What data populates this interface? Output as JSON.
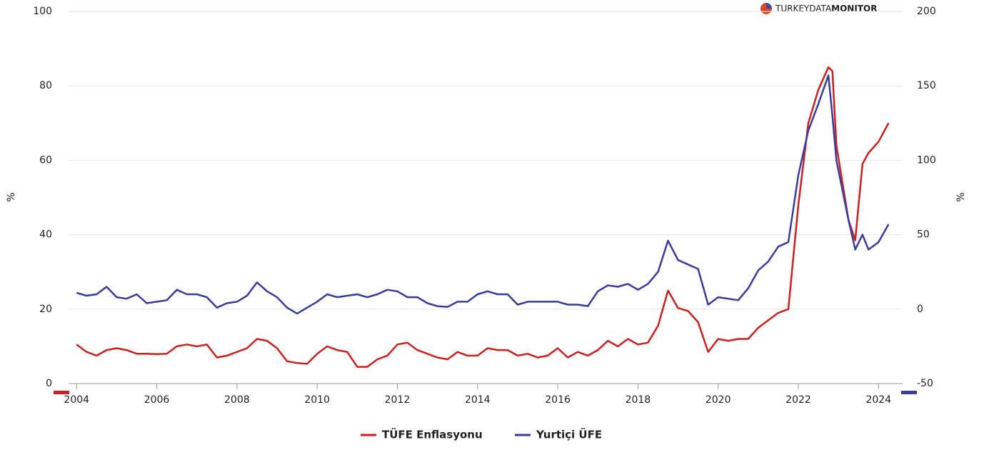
{
  "chart_data": {
    "type": "line",
    "logo": {
      "light": "TURKEYDATA",
      "bold": "MONITOR"
    },
    "ylabel": "%",
    "y2label": "%",
    "x": [
      2004.0,
      2004.25,
      2004.5,
      2004.75,
      2005.0,
      2005.25,
      2005.5,
      2005.75,
      2006.0,
      2006.25,
      2006.5,
      2006.75,
      2007.0,
      2007.25,
      2007.5,
      2007.75,
      2008.0,
      2008.25,
      2008.5,
      2008.75,
      2009.0,
      2009.25,
      2009.5,
      2009.75,
      2010.0,
      2010.25,
      2010.5,
      2010.75,
      2011.0,
      2011.25,
      2011.5,
      2011.75,
      2012.0,
      2012.25,
      2012.5,
      2012.75,
      2013.0,
      2013.25,
      2013.5,
      2013.75,
      2014.0,
      2014.25,
      2014.5,
      2014.75,
      2015.0,
      2015.25,
      2015.5,
      2015.75,
      2016.0,
      2016.25,
      2016.5,
      2016.75,
      2017.0,
      2017.25,
      2017.5,
      2017.75,
      2018.0,
      2018.25,
      2018.5,
      2018.75,
      2019.0,
      2019.25,
      2019.5,
      2019.75,
      2020.0,
      2020.25,
      2020.5,
      2020.75,
      2021.0,
      2021.25,
      2021.5,
      2021.75,
      2022.0,
      2022.25,
      2022.5,
      2022.75,
      2022.85,
      2022.95,
      2023.25,
      2023.42,
      2023.6,
      2023.75,
      2024.0,
      2024.25
    ],
    "series": [
      {
        "name": "TÜFE Enflasyonu",
        "color": "#cc1f1f",
        "axis": "y",
        "values": [
          10.5,
          8.5,
          7.5,
          9,
          9.5,
          9,
          8,
          8,
          7.9,
          8,
          10,
          10.5,
          10,
          10.5,
          7,
          7.5,
          8.5,
          9.5,
          12,
          11.5,
          9.5,
          6,
          5.5,
          5.3,
          8,
          10,
          9,
          8.5,
          4.5,
          4.5,
          6.5,
          7.5,
          10.5,
          11,
          9,
          8,
          7,
          6.5,
          8.5,
          7.5,
          7.5,
          9.5,
          9,
          9,
          7.5,
          8,
          7,
          7.5,
          9.5,
          7,
          8.5,
          7.5,
          9,
          11.5,
          10,
          12,
          10.5,
          11,
          15.5,
          25,
          20.3,
          19.5,
          16.5,
          8.5,
          12,
          11.5,
          12,
          12,
          15,
          17,
          19,
          20,
          48,
          70,
          79,
          85,
          84,
          64,
          44,
          38.5,
          59,
          62,
          65,
          70
        ]
      },
      {
        "name": "Yurtiçi ÜFE",
        "color": "#3b3b9a",
        "axis": "y2",
        "values": [
          11,
          9,
          10,
          15,
          8,
          7,
          10,
          4,
          5,
          6,
          13,
          10,
          10,
          8,
          1,
          4,
          5,
          9,
          18,
          12,
          8,
          1,
          -3,
          1,
          5,
          10,
          8,
          9,
          10,
          8,
          10,
          13,
          12,
          8,
          8,
          4,
          2,
          1.5,
          5,
          5,
          10,
          12,
          10,
          10,
          3,
          5,
          5,
          5,
          5,
          3,
          3,
          2,
          12,
          16,
          15,
          17,
          13,
          17,
          25,
          46,
          33,
          30,
          27,
          3,
          8,
          7,
          6,
          14,
          26,
          32,
          42,
          45,
          90,
          120,
          138,
          157,
          130,
          100,
          60,
          40,
          50,
          40,
          45,
          57
        ]
      }
    ],
    "xlim": [
      2003.8,
      2024.6
    ],
    "xticks": [
      2004,
      2006,
      2008,
      2010,
      2012,
      2014,
      2016,
      2018,
      2020,
      2022,
      2024
    ],
    "ylim": [
      0,
      100
    ],
    "yticks": [
      0,
      20,
      40,
      60,
      80,
      100
    ],
    "y2lim": [
      -50,
      200
    ],
    "y2ticks": [
      -50,
      0,
      50,
      100,
      150,
      200
    ],
    "grid": true
  }
}
